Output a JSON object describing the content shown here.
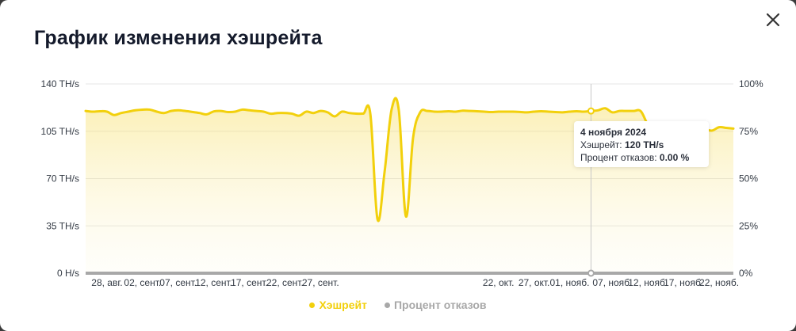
{
  "modal": {
    "title": "График изменения хэшрейта",
    "close_icon": "close-icon"
  },
  "colors": {
    "hashrate": "#f2d00c",
    "reject": "#a8a8a8",
    "grid": "#e6e6e6"
  },
  "tooltip": {
    "date": "4 ноября 2024",
    "hashrate_label": "Хэшрейт:",
    "hashrate_value": "120 TH/s",
    "reject_label": "Процент отказов:",
    "reject_value": "0.00 %"
  },
  "chart_data": {
    "type": "line",
    "title": "",
    "xlabel": "",
    "ylabel": "",
    "legend_position": "bottom",
    "grid": true,
    "y_left": {
      "ylim": [
        0,
        140
      ],
      "ticks": [
        0,
        35,
        70,
        105,
        140
      ],
      "tick_labels": [
        "0 H/s",
        "35 TH/s",
        "70 TH/s",
        "105 TH/s",
        "140 TH/s"
      ]
    },
    "y_right": {
      "ylim": [
        0,
        100
      ],
      "ticks": [
        0,
        25,
        50,
        75,
        100
      ],
      "tick_labels": [
        "0%",
        "25%",
        "50%",
        "75%",
        "100%"
      ]
    },
    "x": {
      "start": "2024-08-25",
      "end": "2024-11-24",
      "tick_dates": [
        "2024-08-28",
        "2024-09-02",
        "2024-09-07",
        "2024-09-12",
        "2024-09-17",
        "2024-09-22",
        "2024-09-27",
        "2024-10-22",
        "2024-10-27",
        "2024-11-01",
        "2024-11-07",
        "2024-11-12",
        "2024-11-17",
        "2024-11-22"
      ],
      "tick_labels": [
        "28, авг.",
        "02, сент.",
        "07, сент.",
        "12, сент.",
        "17, сент.",
        "22, сент.",
        "27, сент.",
        "22, окт.",
        "27, окт.",
        "01, нояб.",
        "07, нояб.",
        "12, нояб.",
        "17, нояб.",
        "22, нояб."
      ]
    },
    "series": [
      {
        "name": "Хэшрейт",
        "axis": "left",
        "style": "area",
        "points": [
          [
            "2024-08-25",
            120
          ],
          [
            "2024-08-26",
            119.5
          ],
          [
            "2024-08-27",
            119.8
          ],
          [
            "2024-08-28",
            119.5
          ],
          [
            "2024-08-29",
            117
          ],
          [
            "2024-08-30",
            118.5
          ],
          [
            "2024-08-31",
            119.5
          ],
          [
            "2024-09-01",
            120.5
          ],
          [
            "2024-09-02",
            121
          ],
          [
            "2024-09-03",
            121
          ],
          [
            "2024-09-04",
            119.5
          ],
          [
            "2024-09-05",
            118.5
          ],
          [
            "2024-09-06",
            120
          ],
          [
            "2024-09-07",
            120.5
          ],
          [
            "2024-09-08",
            120
          ],
          [
            "2024-09-09",
            119.3
          ],
          [
            "2024-09-10",
            118.5
          ],
          [
            "2024-09-11",
            117.5
          ],
          [
            "2024-09-12",
            119.7
          ],
          [
            "2024-09-13",
            120
          ],
          [
            "2024-09-14",
            119.2
          ],
          [
            "2024-09-15",
            119.5
          ],
          [
            "2024-09-16",
            121
          ],
          [
            "2024-09-17",
            120.5
          ],
          [
            "2024-09-18",
            120
          ],
          [
            "2024-09-19",
            119.5
          ],
          [
            "2024-09-20",
            118
          ],
          [
            "2024-09-21",
            118.5
          ],
          [
            "2024-09-22",
            118.5
          ],
          [
            "2024-09-23",
            118
          ],
          [
            "2024-09-24",
            116.5
          ],
          [
            "2024-09-25",
            119.5
          ],
          [
            "2024-09-26",
            118.5
          ],
          [
            "2024-09-27",
            120
          ],
          [
            "2024-09-28",
            119
          ],
          [
            "2024-09-29",
            116
          ],
          [
            "2024-09-30",
            119.5
          ],
          [
            "2024-10-01",
            118.5
          ],
          [
            "2024-10-02",
            118
          ],
          [
            "2024-10-03",
            118
          ],
          [
            "2024-10-04",
            117.8
          ],
          [
            "2024-10-05",
            40
          ],
          [
            "2024-10-06",
            75
          ],
          [
            "2024-10-07",
            121.5
          ],
          [
            "2024-10-08",
            120.5
          ],
          [
            "2024-10-09",
            42
          ],
          [
            "2024-10-10",
            100
          ],
          [
            "2024-10-11",
            119
          ],
          [
            "2024-10-12",
            120
          ],
          [
            "2024-10-13",
            119.5
          ],
          [
            "2024-10-14",
            119.5
          ],
          [
            "2024-10-15",
            119.8
          ],
          [
            "2024-10-16",
            119.5
          ],
          [
            "2024-10-17",
            120.2
          ],
          [
            "2024-10-18",
            120
          ],
          [
            "2024-10-19",
            119.8
          ],
          [
            "2024-10-20",
            119.5
          ],
          [
            "2024-10-21",
            119.2
          ],
          [
            "2024-10-22",
            119.5
          ],
          [
            "2024-10-23",
            119.5
          ],
          [
            "2024-10-24",
            119.5
          ],
          [
            "2024-10-25",
            119.3
          ],
          [
            "2024-10-26",
            119
          ],
          [
            "2024-10-27",
            119.5
          ],
          [
            "2024-10-28",
            119.8
          ],
          [
            "2024-10-29",
            119.5
          ],
          [
            "2024-10-30",
            119.2
          ],
          [
            "2024-10-31",
            119
          ],
          [
            "2024-11-01",
            119.5
          ],
          [
            "2024-11-02",
            119.8
          ],
          [
            "2024-11-03",
            119.5
          ],
          [
            "2024-11-04",
            120
          ],
          [
            "2024-11-05",
            120.5
          ],
          [
            "2024-11-06",
            122
          ],
          [
            "2024-11-07",
            119
          ],
          [
            "2024-11-08",
            120
          ],
          [
            "2024-11-09",
            120
          ],
          [
            "2024-11-10",
            120
          ],
          [
            "2024-11-11",
            119.8
          ],
          [
            "2024-11-12",
            110
          ],
          [
            "2024-11-13",
            108
          ],
          [
            "2024-11-14",
            107.5
          ],
          [
            "2024-11-15",
            107
          ],
          [
            "2024-11-16",
            107.2
          ],
          [
            "2024-11-17",
            106.8
          ],
          [
            "2024-11-18",
            107
          ],
          [
            "2024-11-19",
            106.5
          ],
          [
            "2024-11-20",
            106.5
          ],
          [
            "2024-11-21",
            105.5
          ],
          [
            "2024-11-22",
            108
          ],
          [
            "2024-11-23",
            107.5
          ],
          [
            "2024-11-24",
            107
          ]
        ]
      },
      {
        "name": "Процент отказов",
        "axis": "right",
        "style": "line",
        "points": [
          [
            "2024-08-25",
            0
          ],
          [
            "2024-11-24",
            0
          ]
        ]
      }
    ],
    "hover": {
      "date": "2024-11-04",
      "hashrate": 120,
      "reject": 0
    }
  }
}
